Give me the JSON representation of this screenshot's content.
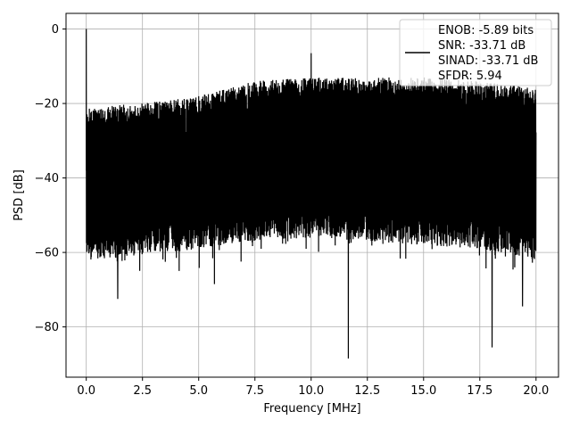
{
  "chart_data": {
    "type": "line",
    "xlabel": "Frequency [MHz]",
    "ylabel": "PSD [dB]",
    "xlim": [
      -0.9,
      21.0
    ],
    "ylim": [
      -93.5,
      4.2
    ],
    "xticks": [
      0.0,
      2.5,
      5.0,
      7.5,
      10.0,
      12.5,
      15.0,
      17.5,
      20.0
    ],
    "xtick_labels": [
      "0.0",
      "2.5",
      "5.0",
      "7.5",
      "10.0",
      "12.5",
      "15.0",
      "17.5",
      "20.0"
    ],
    "yticks": [
      0,
      -20,
      -40,
      -60,
      -80
    ],
    "ytick_labels": [
      "0",
      "−20",
      "−40",
      "−60",
      "−80"
    ],
    "grid": true,
    "legend_placement": "top-right",
    "series": [
      {
        "name": "",
        "color": "#000000",
        "x_range": [
          0.0,
          20.0
        ],
        "approx_upper_envelope": [
          [
            0.0,
            -21
          ],
          [
            2.5,
            -20
          ],
          [
            5.0,
            -18
          ],
          [
            7.5,
            -14
          ],
          [
            10.0,
            -13
          ],
          [
            12.5,
            -13
          ],
          [
            15.0,
            -13
          ],
          [
            17.5,
            -14
          ],
          [
            20.0,
            -16
          ]
        ],
        "approx_lower_envelope": [
          [
            0.0,
            -62
          ],
          [
            2.5,
            -61
          ],
          [
            5.0,
            -59
          ],
          [
            7.5,
            -57
          ],
          [
            10.0,
            -56
          ],
          [
            12.5,
            -57
          ],
          [
            15.0,
            -58
          ],
          [
            17.5,
            -59
          ],
          [
            20.0,
            -62
          ]
        ],
        "peaks": [
          [
            0.0,
            0.0
          ],
          [
            10.0,
            -6.5
          ]
        ],
        "notches": [
          [
            11.65,
            -88.5
          ],
          [
            18.05,
            -85.5
          ],
          [
            5.7,
            -68.5
          ],
          [
            1.4,
            -72.5
          ],
          [
            19.4,
            -74.5
          ]
        ]
      }
    ],
    "legend": {
      "lines": [
        "ENOB: -5.89 bits",
        "SNR: -33.71 dB",
        "SINAD: -33.71 dB",
        "SFDR: 5.94"
      ]
    }
  }
}
